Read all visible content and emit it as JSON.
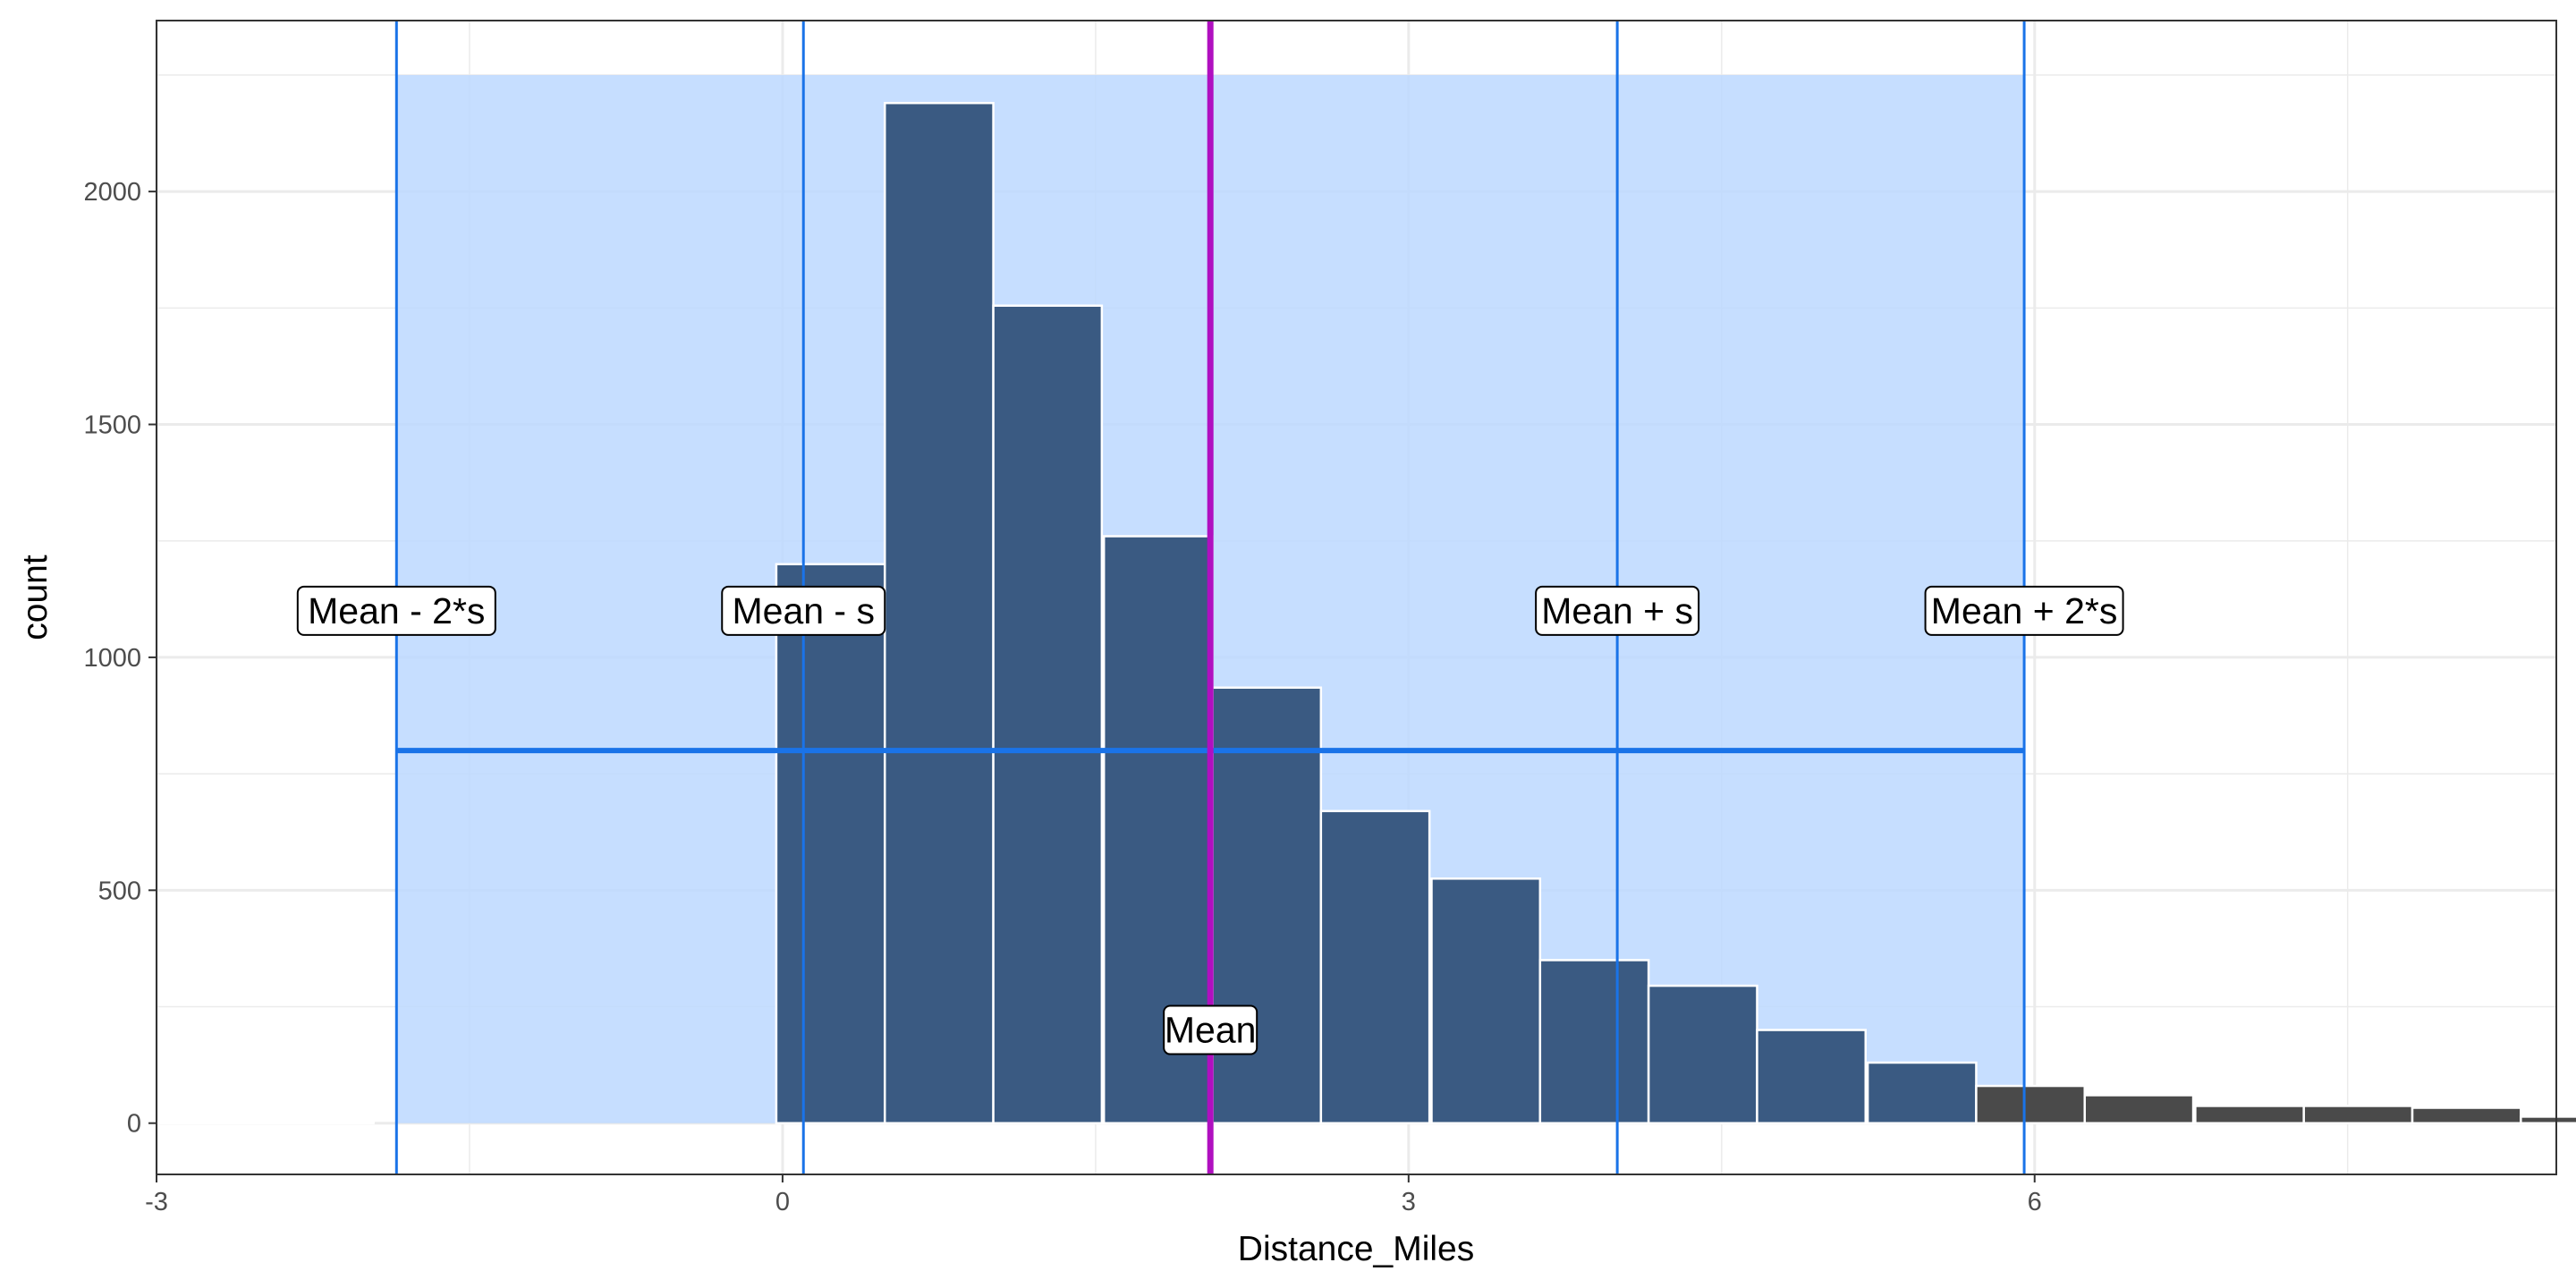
{
  "chart_data": {
    "type": "bar",
    "xlabel": "Distance_Miles",
    "ylabel": "count",
    "xlim": [
      -3,
      8.5
    ],
    "ylim": [
      -110,
      2367
    ],
    "x_ticks": [
      {
        "value": -3,
        "label": "-3"
      },
      {
        "value": 0,
        "label": "0"
      },
      {
        "value": 3,
        "label": "3"
      },
      {
        "value": 6,
        "label": "6"
      }
    ],
    "y_ticks": [
      {
        "value": 0,
        "label": "0"
      },
      {
        "value": 500,
        "label": "500"
      },
      {
        "value": 1000,
        "label": "1000"
      },
      {
        "value": 1500,
        "label": "1500"
      },
      {
        "value": 2000,
        "label": "2000"
      }
    ],
    "grid": true,
    "bin_width": 0.52,
    "bins": [
      {
        "start": -3.0,
        "count": 0
      },
      {
        "start": -2.48,
        "count": 0
      },
      {
        "start": -0.03,
        "count": 1200
      },
      {
        "start": 0.49,
        "count": 2190
      },
      {
        "start": 1.01,
        "count": 1755
      },
      {
        "start": 1.54,
        "count": 1260
      },
      {
        "start": 2.06,
        "count": 935
      },
      {
        "start": 2.58,
        "count": 670
      },
      {
        "start": 3.11,
        "count": 525
      },
      {
        "start": 3.63,
        "count": 350
      },
      {
        "start": 4.15,
        "count": 295
      },
      {
        "start": 4.67,
        "count": 200
      },
      {
        "start": 5.2,
        "count": 130
      },
      {
        "start": 5.72,
        "count": 80
      },
      {
        "start": 6.24,
        "count": 60
      },
      {
        "start": 6.77,
        "count": 37
      },
      {
        "start": 7.29,
        "count": 37
      },
      {
        "start": 7.81,
        "count": 33
      },
      {
        "start": 8.33,
        "count": 14
      }
    ],
    "mean": 2.05,
    "sd": 1.95,
    "vlines": [
      {
        "x": -1.85,
        "label": "Mean - 2*s"
      },
      {
        "x": 0.1,
        "label": "Mean - s"
      },
      {
        "x": 2.05,
        "label": "Mean"
      },
      {
        "x": 4.0,
        "label": "Mean + s"
      },
      {
        "x": 5.95,
        "label": "Mean + 2*s"
      }
    ],
    "band": {
      "x_from": -1.85,
      "x_to": 5.95,
      "y_from": 0,
      "y_to": 2250
    },
    "hline": {
      "y": 800,
      "x_from": -1.85,
      "x_to": 5.95
    },
    "label_y": 1100,
    "mean_label_y": 200,
    "colors": {
      "bar_inside": "#3a5a82",
      "bar_outside": "#4a4a4a",
      "band": "#bcd8ff",
      "vline": "#1a73e8",
      "mean_line": "#b010c0",
      "grid": "#ebebeb"
    }
  }
}
